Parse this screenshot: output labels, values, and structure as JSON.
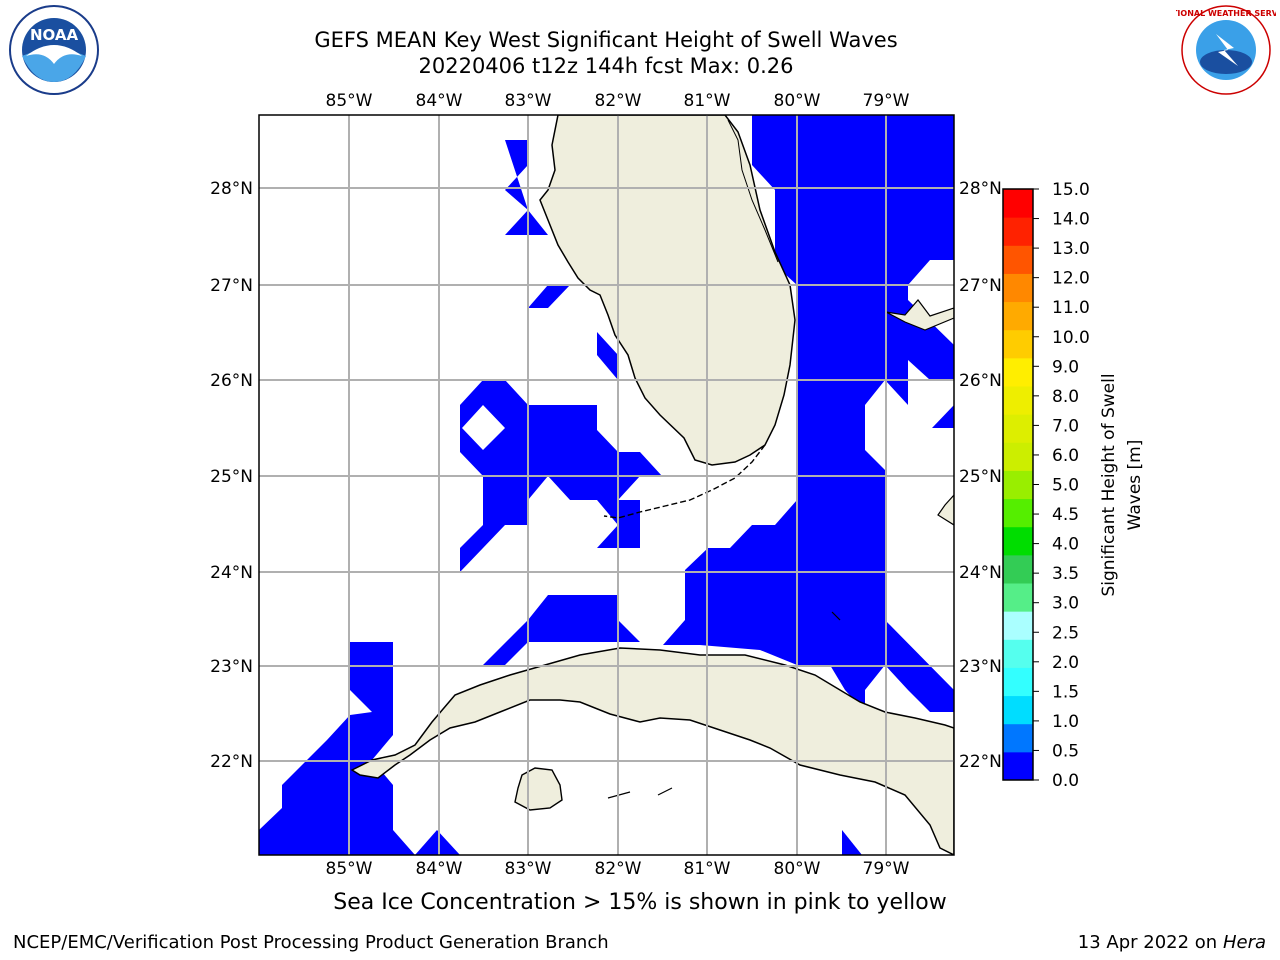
{
  "header": {
    "title_line1": "GEFS MEAN Key West Significant Height of Swell Waves",
    "title_line2": "20220406 t12z 144h fcst   Max: 0.26"
  },
  "map": {
    "lon_labels": [
      "85°W",
      "84°W",
      "83°W",
      "82°W",
      "81°W",
      "80°W",
      "79°W"
    ],
    "lat_labels": [
      "28°N",
      "27°N",
      "26°N",
      "25°N",
      "24°N",
      "23°N",
      "22°N"
    ],
    "colors": {
      "land": "#efeedd",
      "swell": "#0000ff",
      "grid": "#b0b0b0",
      "water": "#ffffff"
    }
  },
  "colorbar": {
    "label": "Significant Height of Swell Waves [m]",
    "ticks": [
      "0.0",
      "0.5",
      "1.0",
      "1.5",
      "2.0",
      "2.5",
      "3.0",
      "3.5",
      "4.0",
      "4.5",
      "5.0",
      "6.0",
      "7.0",
      "8.0",
      "9.0",
      "10.0",
      "11.0",
      "12.0",
      "13.0",
      "14.0",
      "15.0"
    ],
    "colors": [
      "#0000ff",
      "#0077ff",
      "#00ddff",
      "#33ffff",
      "#55ffee",
      "#aaffff",
      "#55ee88",
      "#33cc55",
      "#00dd00",
      "#55ee00",
      "#99ee00",
      "#ccee00",
      "#ddee00",
      "#eeee00",
      "#ffee00",
      "#ffcc00",
      "#ffaa00",
      "#ff8800",
      "#ff5500",
      "#ff2200",
      "#ff0000"
    ]
  },
  "caption": "Sea Ice Concentration > 15% is shown in pink to yellow",
  "footer": {
    "left": "NCEP/EMC/Verification Post Processing Product Generation Branch",
    "right_date": "13 Apr 2022 on",
    "right_host": "Hera"
  },
  "logos": {
    "noaa_text": "NOAA",
    "nws_text": "NATIONAL WEATHER SERVICE"
  }
}
